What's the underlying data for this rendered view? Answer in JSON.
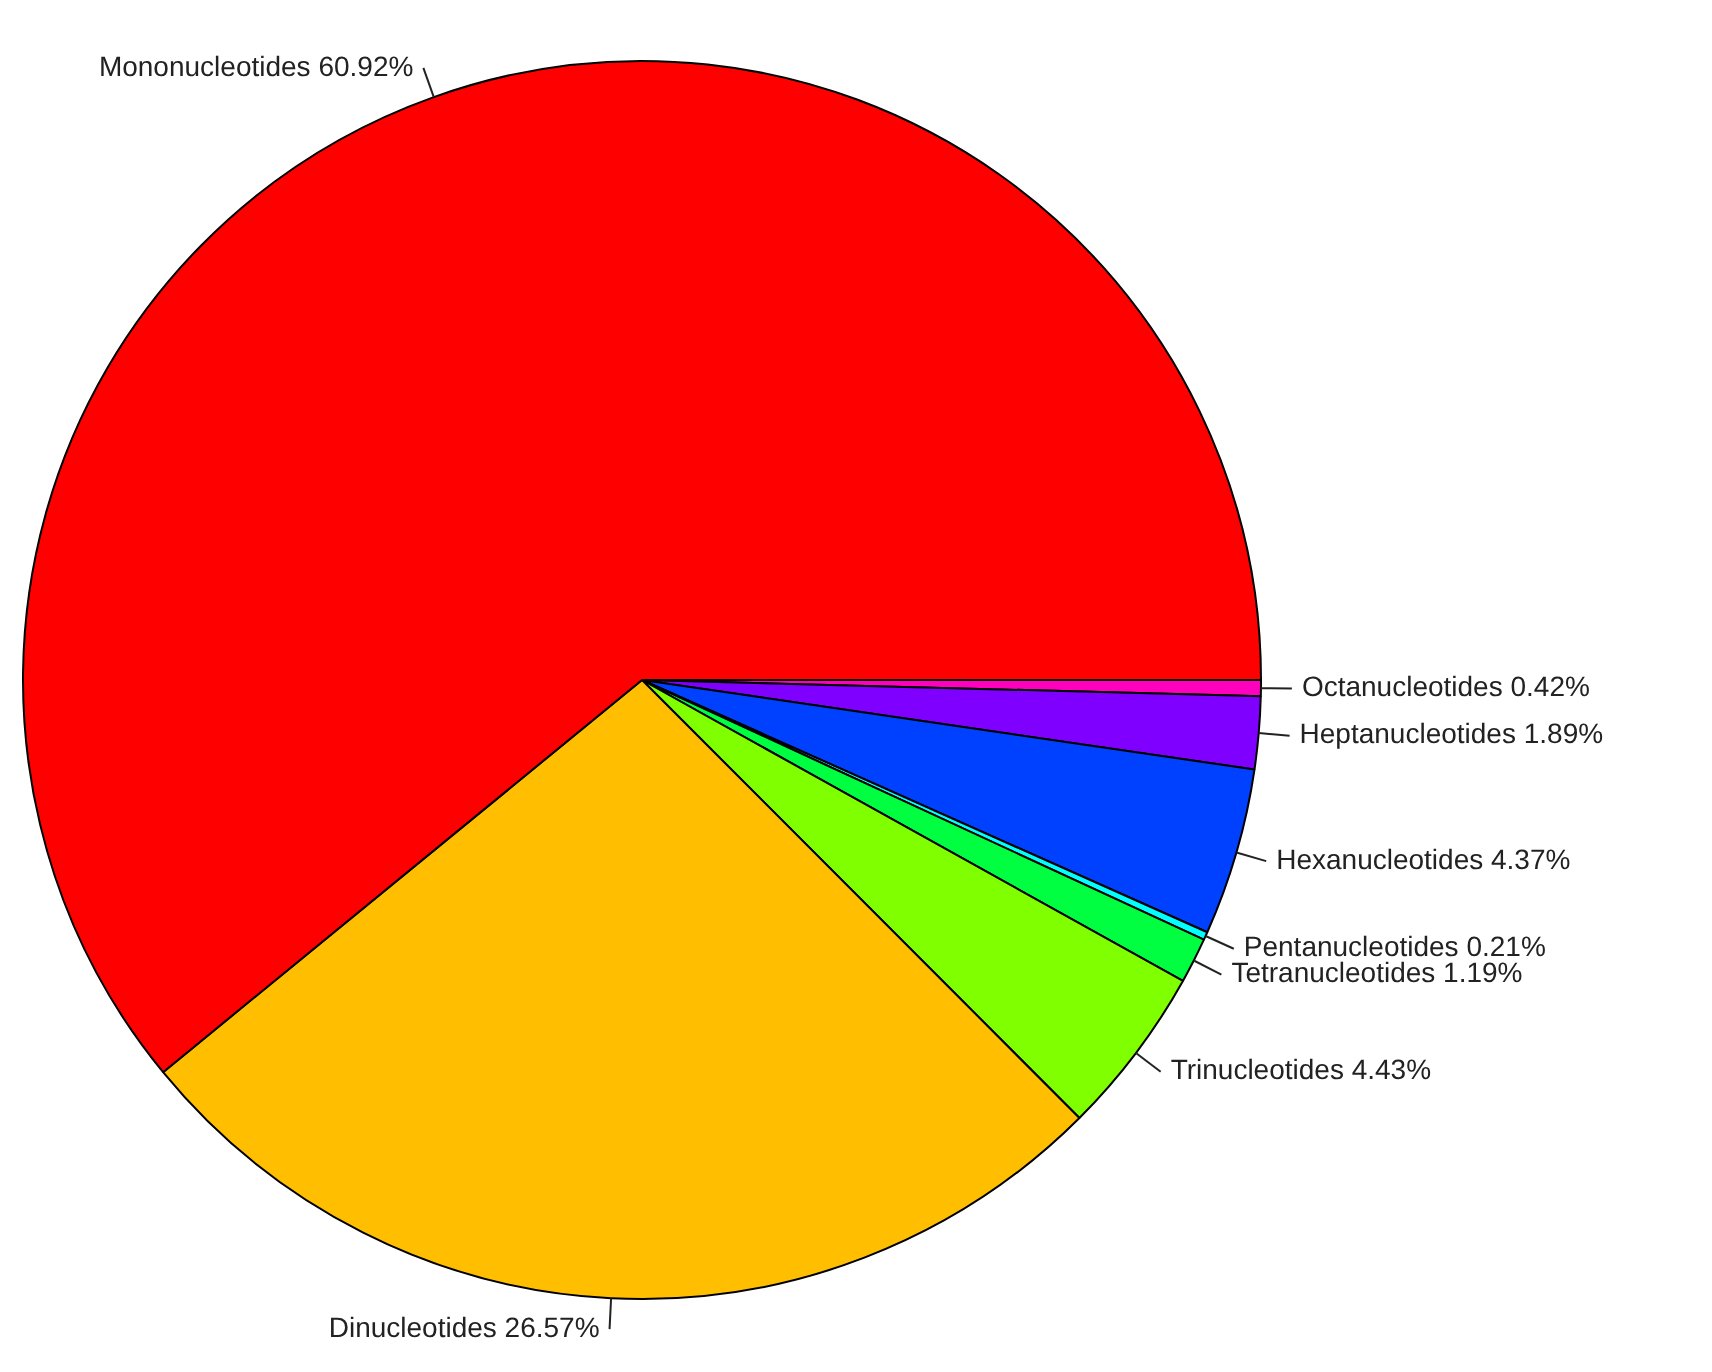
{
  "chart_data": {
    "type": "pie",
    "categories": [
      "Mononucleotides 60.92%",
      "Dinucleotides 26.57%",
      "Trinucleotides 4.43%",
      "Tetranucleotides 1.19%",
      "Pentanucleotides 0.21%",
      "Hexanucleotides 4.37%",
      "Heptanucleotides 1.89%",
      "Octanucleotides 0.42%"
    ],
    "values": [
      60.92,
      26.57,
      4.43,
      1.19,
      0.21,
      4.37,
      1.89,
      0.42
    ],
    "colors": [
      "#ff0000",
      "#ffbf00",
      "#80ff00",
      "#00ff40",
      "#00ffff",
      "#0040ff",
      "#8000ff",
      "#ff00bf"
    ],
    "legend": false
  }
}
